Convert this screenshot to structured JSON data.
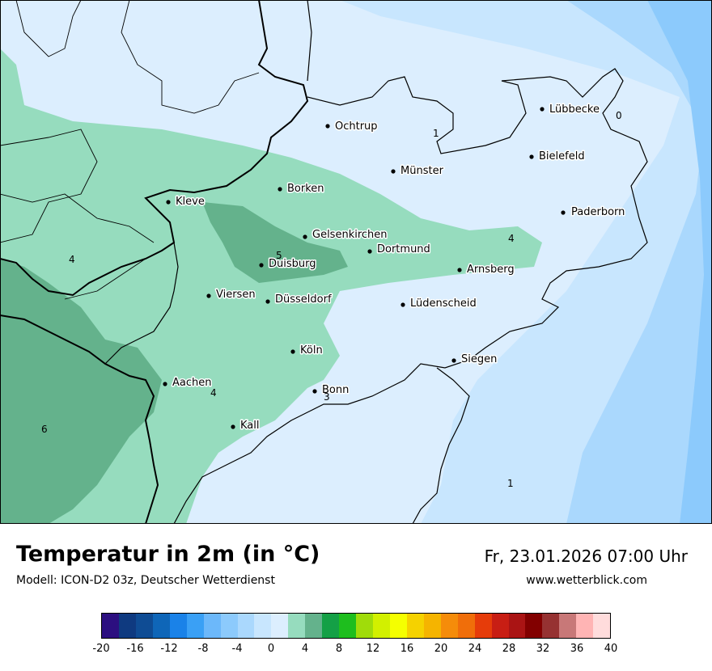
{
  "header": {
    "title": "Temperatur in 2m (in °C)",
    "model": "Modell: ICON-D2 03z, Deutscher Wetterdienst",
    "datetime": "Fr, 23.01.2026 07:00 Uhr",
    "website": "www.wetterblick.com"
  },
  "cities": [
    {
      "name": "Lübbecke"
    },
    {
      "name": "Ochtrup"
    },
    {
      "name": "Bielefeld"
    },
    {
      "name": "Münster"
    },
    {
      "name": "Borken"
    },
    {
      "name": "Kleve"
    },
    {
      "name": "Paderborn"
    },
    {
      "name": "Gelsenkirchen"
    },
    {
      "name": "Dortmund"
    },
    {
      "name": "Duisburg"
    },
    {
      "name": "Arnsberg"
    },
    {
      "name": "Viersen"
    },
    {
      "name": "Düsseldorf"
    },
    {
      "name": "Lüdenscheid"
    },
    {
      "name": "Köln"
    },
    {
      "name": "Siegen"
    },
    {
      "name": "Aachen"
    },
    {
      "name": "Bonn"
    },
    {
      "name": "Kall"
    }
  ],
  "isotherm_labels": [
    "0",
    "1",
    "4",
    "4",
    "5",
    "4",
    "3",
    "6",
    "1"
  ],
  "colorbar": {
    "colors": [
      "#2c0f80",
      "#0f3a80",
      "#0f4c94",
      "#0f66b8",
      "#1a82e8",
      "#3aa0f5",
      "#6cb8fa",
      "#8ccafc",
      "#aad8fd",
      "#c8e6fe",
      "#dceefe",
      "#96dcbe",
      "#64b28c",
      "#14a046",
      "#1ebe1e",
      "#a0dc0a",
      "#d2f000",
      "#f5ff00",
      "#f5d200",
      "#f5b400",
      "#f58c0a",
      "#f06e0a",
      "#e63c0a",
      "#c81e14",
      "#aa1414",
      "#820000",
      "#963232",
      "#c87878",
      "#ffb4b4",
      "#ffdcdc"
    ],
    "ticks": [
      "-20",
      "-16",
      "-12",
      "-8",
      "-4",
      "0",
      "4",
      "8",
      "12",
      "16",
      "20",
      "24",
      "28",
      "32",
      "36",
      "40"
    ]
  }
}
